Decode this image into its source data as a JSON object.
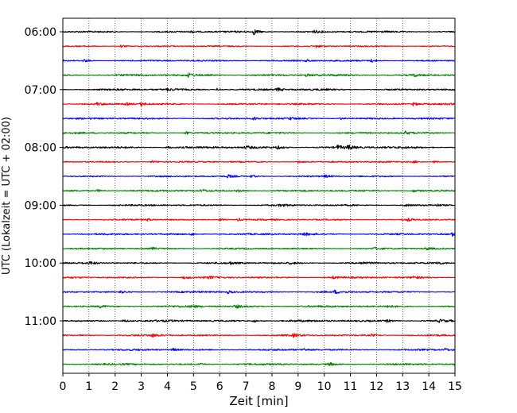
{
  "chart_data": {
    "type": "line",
    "title": "",
    "xlabel": "Zeit  [min]",
    "ylabel": "UTC (Lokalzeit = UTC + 02:00)",
    "xlim": [
      0,
      15
    ],
    "x_ticks": [
      0,
      1,
      2,
      3,
      4,
      5,
      6,
      7,
      8,
      9,
      10,
      11,
      12,
      13,
      14,
      15
    ],
    "x_tick_labels": [
      "0",
      "1",
      "2",
      "3",
      "4",
      "5",
      "6",
      "7",
      "8",
      "9",
      "10",
      "11",
      "12",
      "13",
      "14",
      "15"
    ],
    "grid": "vertical dotted lines at each minute",
    "y_tick_labels": [
      {
        "row": 0,
        "label": "06:00"
      },
      {
        "row": 4,
        "label": "07:00"
      },
      {
        "row": 8,
        "label": "08:00"
      },
      {
        "row": 12,
        "label": "09:00"
      },
      {
        "row": 16,
        "label": "10:00"
      },
      {
        "row": 20,
        "label": "11:00"
      }
    ],
    "color_cycle": [
      "#000000",
      "#ff0000",
      "#0000ff",
      "#008000"
    ],
    "rows": [
      {
        "start": "06:00",
        "color": "#000000",
        "noise": 0.8,
        "events": [
          [
            7.3,
            3.5
          ],
          [
            9.6,
            1.8
          ],
          [
            4.9,
            1.2
          ]
        ]
      },
      {
        "start": "06:15",
        "color": "#ff0000",
        "noise": 0.6,
        "events": [
          [
            2.2,
            2.5
          ],
          [
            9.7,
            1.6
          ]
        ]
      },
      {
        "start": "06:30",
        "color": "#0000ff",
        "noise": 0.7,
        "events": [
          [
            0.8,
            1.8
          ],
          [
            9.3,
            1.6
          ],
          [
            11.8,
            1.8
          ]
        ]
      },
      {
        "start": "06:45",
        "color": "#008000",
        "noise": 0.9,
        "events": [
          [
            4.8,
            2.2
          ],
          [
            9.3,
            1.4
          ],
          [
            13.4,
            1.8
          ]
        ]
      },
      {
        "start": "07:00",
        "color": "#000000",
        "noise": 0.9,
        "events": [
          [
            5.9,
            1.6
          ],
          [
            8.2,
            2.0
          ],
          [
            4.0,
            1.2
          ]
        ]
      },
      {
        "start": "07:15",
        "color": "#ff0000",
        "noise": 0.8,
        "events": [
          [
            2.4,
            1.6
          ],
          [
            3.0,
            2.2
          ],
          [
            13.4,
            1.8
          ],
          [
            1.3,
            1.4
          ]
        ]
      },
      {
        "start": "07:30",
        "color": "#0000ff",
        "noise": 0.8,
        "events": [
          [
            7.3,
            1.8
          ],
          [
            8.7,
            1.4
          ],
          [
            10.6,
            1.4
          ]
        ]
      },
      {
        "start": "07:45",
        "color": "#008000",
        "noise": 0.8,
        "events": [
          [
            4.7,
            1.8
          ],
          [
            13.1,
            1.6
          ]
        ]
      },
      {
        "start": "08:00",
        "color": "#000000",
        "noise": 1.0,
        "events": [
          [
            10.9,
            2.8
          ],
          [
            10.5,
            2.2
          ],
          [
            7.0,
            1.6
          ],
          [
            8.2,
            1.8
          ],
          [
            4.0,
            1.4
          ]
        ]
      },
      {
        "start": "08:15",
        "color": "#ff0000",
        "noise": 0.7,
        "events": [
          [
            3.4,
            1.8
          ],
          [
            9.0,
            1.6
          ],
          [
            13.4,
            1.8
          ],
          [
            14.2,
            1.2
          ]
        ]
      },
      {
        "start": "08:30",
        "color": "#0000ff",
        "noise": 0.7,
        "events": [
          [
            6.3,
            1.8
          ],
          [
            7.2,
            1.6
          ],
          [
            10.0,
            1.6
          ]
        ]
      },
      {
        "start": "08:45",
        "color": "#008000",
        "noise": 0.8,
        "events": [
          [
            1.3,
            1.8
          ],
          [
            5.3,
            1.6
          ],
          [
            6.7,
            1.6
          ],
          [
            13.4,
            1.8
          ]
        ]
      },
      {
        "start": "09:00",
        "color": "#000000",
        "noise": 0.8,
        "events": [
          [
            8.3,
            1.6
          ],
          [
            13.1,
            1.6
          ],
          [
            14.3,
            1.2
          ]
        ]
      },
      {
        "start": "09:15",
        "color": "#ff0000",
        "noise": 0.7,
        "events": [
          [
            3.2,
            1.8
          ],
          [
            6.0,
            1.6
          ],
          [
            6.7,
            1.8
          ],
          [
            13.2,
            1.4
          ]
        ]
      },
      {
        "start": "09:30",
        "color": "#0000ff",
        "noise": 0.8,
        "events": [
          [
            9.2,
            2.2
          ],
          [
            14.9,
            2.4
          ],
          [
            4.9,
            1.4
          ]
        ]
      },
      {
        "start": "09:45",
        "color": "#008000",
        "noise": 0.7,
        "events": [
          [
            3.4,
            1.6
          ],
          [
            11.9,
            1.4
          ],
          [
            13.9,
            1.6
          ]
        ]
      },
      {
        "start": "10:00",
        "color": "#000000",
        "noise": 0.8,
        "events": [
          [
            1.0,
            1.8
          ],
          [
            8.7,
            1.4
          ],
          [
            11.4,
            1.4
          ],
          [
            14.3,
            1.8
          ],
          [
            6.4,
            1.2
          ]
        ]
      },
      {
        "start": "10:15",
        "color": "#ff0000",
        "noise": 0.8,
        "events": [
          [
            4.6,
            1.6
          ],
          [
            10.3,
            1.6
          ],
          [
            13.4,
            1.6
          ],
          [
            5.6,
            1.4
          ]
        ]
      },
      {
        "start": "10:30",
        "color": "#0000ff",
        "noise": 0.8,
        "events": [
          [
            6.3,
            1.8
          ],
          [
            10.4,
            1.8
          ],
          [
            2.2,
            1.4
          ]
        ]
      },
      {
        "start": "10:45",
        "color": "#008000",
        "noise": 0.9,
        "events": [
          [
            6.6,
            2.2
          ],
          [
            1.4,
            1.6
          ],
          [
            4.9,
            1.4
          ],
          [
            12.4,
            1.6
          ]
        ]
      },
      {
        "start": "11:00",
        "color": "#000000",
        "noise": 0.9,
        "events": [
          [
            2.3,
            2.0
          ],
          [
            7.3,
            1.6
          ],
          [
            12.4,
            1.6
          ],
          [
            14.4,
            1.4
          ]
        ]
      },
      {
        "start": "11:15",
        "color": "#ff0000",
        "noise": 0.8,
        "events": [
          [
            3.4,
            1.6
          ],
          [
            8.8,
            2.0
          ],
          [
            11.8,
            1.4
          ]
        ]
      },
      {
        "start": "11:30",
        "color": "#0000ff",
        "noise": 0.8,
        "events": [
          [
            4.2,
            1.8
          ],
          [
            9.2,
            1.6
          ],
          [
            14.6,
            1.8
          ]
        ]
      },
      {
        "start": "11:45",
        "color": "#008000",
        "noise": 0.8,
        "events": [
          [
            10.2,
            2.0
          ],
          [
            15.0,
            1.6
          ],
          [
            5.2,
            1.4
          ]
        ]
      }
    ]
  }
}
